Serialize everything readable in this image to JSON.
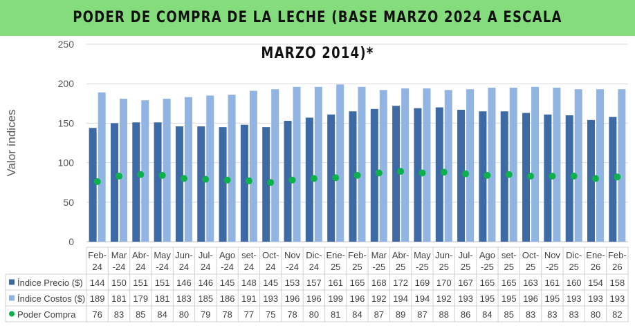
{
  "chart_data": {
    "type": "bar",
    "title": "PODER DE COMPRA DE LA LECHE (BASE MARZO 2024 A ESCALA MARZO 2014)*",
    "ylabel": "Valor índices",
    "xlabel": "",
    "ylim": [
      0,
      250
    ],
    "yticks": [
      0,
      50,
      100,
      150,
      200,
      250
    ],
    "grid": true,
    "legend": "data-table",
    "categories": [
      "Feb-24",
      "Mar-24",
      "Abr-24",
      "May-24",
      "Jun-24",
      "Jul-24",
      "Ago-24",
      "set-24",
      "Oct-24",
      "Nov-24",
      "Dic-24",
      "Ene-25",
      "Feb-25",
      "Mar-25",
      "Abr-25",
      "May-25",
      "Jun-25",
      "Jul-25",
      "Ago-25",
      "set-25",
      "Oct-25",
      "Nov-25",
      "Dic-25",
      "Ene-26",
      "Feb-26"
    ],
    "series": [
      {
        "name": "Índice Precio ($)",
        "type": "bar",
        "color": "#3d6aa5",
        "values": [
          144,
          150,
          151,
          151,
          146,
          146,
          145,
          148,
          145,
          153,
          157,
          161,
          165,
          168,
          172,
          169,
          170,
          167,
          165,
          165,
          163,
          161,
          160,
          154,
          158
        ]
      },
      {
        "name": "Índice Costos ($)",
        "type": "bar",
        "color": "#92b4e2",
        "values": [
          189,
          181,
          179,
          181,
          183,
          185,
          186,
          191,
          193,
          196,
          196,
          199,
          196,
          192,
          194,
          194,
          192,
          193,
          195,
          195,
          196,
          195,
          193,
          193,
          193
        ]
      },
      {
        "name": "Poder Compra",
        "type": "scatter",
        "color": "#0db14b",
        "values": [
          76,
          83,
          85,
          84,
          80,
          79,
          78,
          77,
          75,
          78,
          80,
          81,
          84,
          87,
          89,
          87,
          88,
          86,
          84,
          85,
          83,
          83,
          83,
          80,
          82
        ]
      }
    ]
  }
}
